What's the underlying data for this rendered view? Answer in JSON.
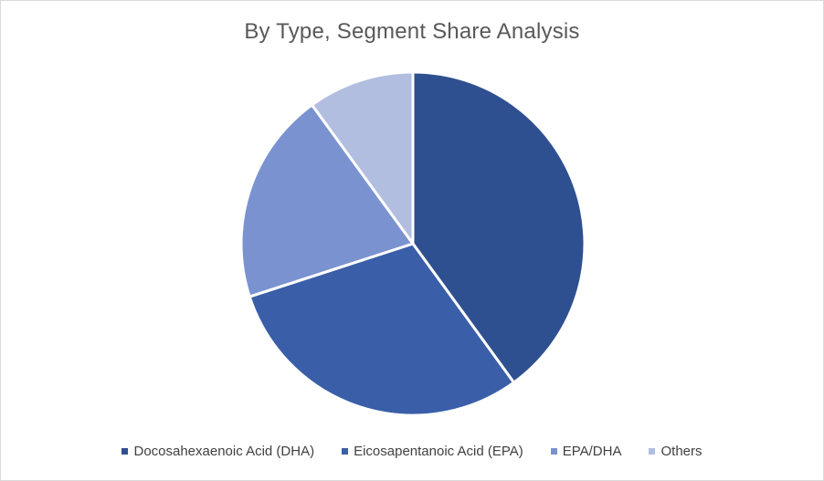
{
  "chart_data": {
    "type": "pie",
    "title": "By Type, Segment Share Analysis",
    "categories": [
      "Docosahexaenoic Acid (DHA)",
      "Eicosapentanoic Acid (EPA)",
      "EPA/DHA",
      "Others"
    ],
    "values": [
      40,
      30,
      20,
      10
    ],
    "colors": [
      "#2F5090",
      "#3A5FA8",
      "#7A93D0",
      "#B2BEE0"
    ],
    "legend_position": "bottom",
    "start_angle_deg": 0,
    "direction": "clockwise"
  }
}
